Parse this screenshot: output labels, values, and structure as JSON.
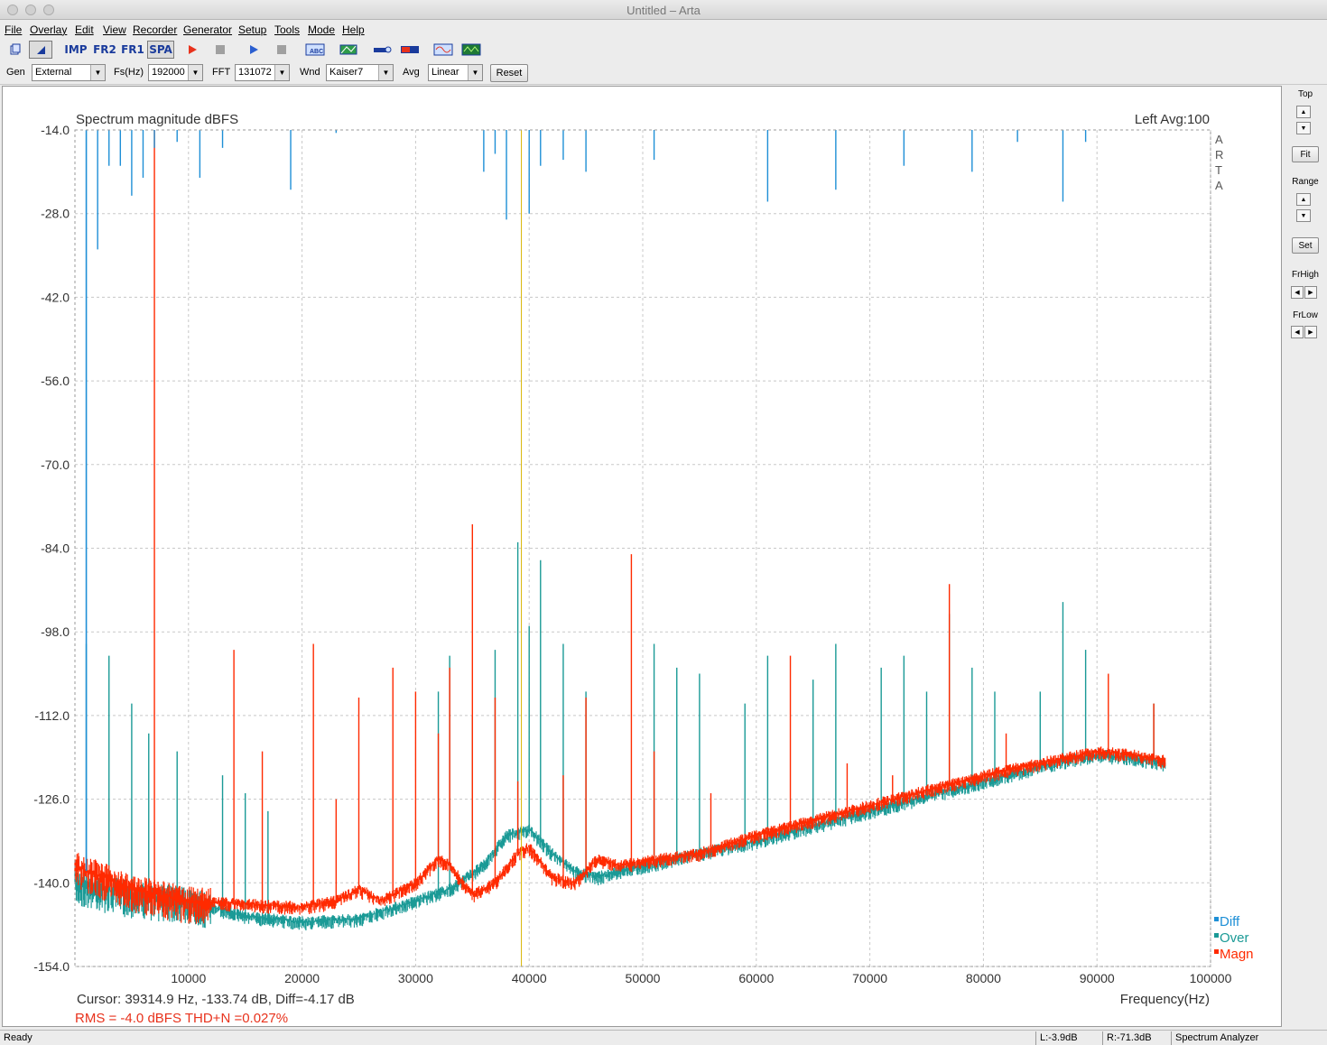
{
  "window": {
    "title": "Untitled – Arta"
  },
  "menu": [
    "File",
    "Overlay",
    "Edit",
    "View",
    "Recorder",
    "Generator",
    "Setup",
    "Tools",
    "Mode",
    "Help"
  ],
  "toolbar": {
    "imp": "IMP",
    "fr2": "FR2",
    "fr1": "FR1",
    "spa": "SPA"
  },
  "options": {
    "gen_label": "Gen",
    "gen_value": "External",
    "fs_label": "Fs(Hz)",
    "fs_value": "192000",
    "fft_label": "FFT",
    "fft_value": "131072",
    "wnd_label": "Wnd",
    "wnd_value": "Kaiser7",
    "avg_label": "Avg",
    "avg_value": "Linear",
    "reset_label": "Reset"
  },
  "side": {
    "top_label": "Top",
    "fit_label": "Fit",
    "range_label": "Range",
    "set_label": "Set",
    "frhigh_label": "FrHigh",
    "frlow_label": "FrLow"
  },
  "plot": {
    "title": "Spectrum magnitude dBFS",
    "channel": "Left  Avg:100",
    "brand": [
      "A",
      "R",
      "T",
      "A"
    ],
    "cursor_text": "Cursor: 39314.9 Hz, -133.74 dB,  Diff=-4.17 dB",
    "rms_text": "RMS =   -4.0 dBFS   THD+N =0.027%",
    "colors": {
      "diff": "#1e8fd6",
      "over": "#1a9a96",
      "magn": "#ff2a00",
      "cursor": "#d8b400",
      "grid": "#c8c8c8"
    }
  },
  "chart_data": {
    "type": "line",
    "xlabel": "Frequency(Hz)",
    "ylabel": "",
    "xlim": [
      0,
      100000
    ],
    "ylim": [
      -154,
      -14
    ],
    "xticks": [
      10000,
      20000,
      30000,
      40000,
      50000,
      60000,
      70000,
      80000,
      90000,
      100000
    ],
    "yticks": [
      -14.0,
      -28.0,
      -42.0,
      -56.0,
      -70.0,
      -84.0,
      -98.0,
      -112.0,
      -126.0,
      -140.0,
      -154.0
    ],
    "grid": true,
    "legend_position": "bottom-right",
    "cursor_x": 39314.9,
    "series": [
      {
        "name": "Diff",
        "spikes": [
          {
            "x": 1000,
            "y": -14
          },
          {
            "x": 2000,
            "y": -34
          },
          {
            "x": 3000,
            "y": -20
          },
          {
            "x": 4000,
            "y": -20
          },
          {
            "x": 5000,
            "y": -25
          },
          {
            "x": 6000,
            "y": -22
          },
          {
            "x": 7000,
            "y": -17
          },
          {
            "x": 9000,
            "y": -16
          },
          {
            "x": 11000,
            "y": -22
          },
          {
            "x": 13000,
            "y": -17
          },
          {
            "x": 19000,
            "y": -24
          },
          {
            "x": 23000,
            "y": -14.5
          },
          {
            "x": 36000,
            "y": -21
          },
          {
            "x": 37000,
            "y": -18
          },
          {
            "x": 38000,
            "y": -29
          },
          {
            "x": 39000,
            "y": -14
          },
          {
            "x": 40000,
            "y": -28
          },
          {
            "x": 41000,
            "y": -20
          },
          {
            "x": 43000,
            "y": -19
          },
          {
            "x": 45000,
            "y": -21
          },
          {
            "x": 51000,
            "y": -19
          },
          {
            "x": 61000,
            "y": -26
          },
          {
            "x": 67000,
            "y": -24
          },
          {
            "x": 73000,
            "y": -20
          },
          {
            "x": 79000,
            "y": -21
          },
          {
            "x": 83000,
            "y": -16
          },
          {
            "x": 87000,
            "y": -26
          },
          {
            "x": 89000,
            "y": -16
          }
        ]
      },
      {
        "name": "Over",
        "floor": [
          {
            "x": 0,
            "y": -140
          },
          {
            "x": 5000,
            "y": -142
          },
          {
            "x": 10000,
            "y": -143
          },
          {
            "x": 15000,
            "y": -145.5
          },
          {
            "x": 20000,
            "y": -146.5
          },
          {
            "x": 25000,
            "y": -146
          },
          {
            "x": 30000,
            "y": -143
          },
          {
            "x": 33000,
            "y": -141
          },
          {
            "x": 36000,
            "y": -137
          },
          {
            "x": 38000,
            "y": -132
          },
          {
            "x": 40000,
            "y": -131
          },
          {
            "x": 42000,
            "y": -135
          },
          {
            "x": 44000,
            "y": -138
          },
          {
            "x": 46000,
            "y": -139
          },
          {
            "x": 48000,
            "y": -138
          },
          {
            "x": 55000,
            "y": -135
          },
          {
            "x": 60000,
            "y": -133
          },
          {
            "x": 70000,
            "y": -128
          },
          {
            "x": 80000,
            "y": -123
          },
          {
            "x": 86000,
            "y": -120
          },
          {
            "x": 90000,
            "y": -118.5
          },
          {
            "x": 93000,
            "y": -119
          },
          {
            "x": 96000,
            "y": -120
          }
        ],
        "spikes": [
          {
            "x": 1000,
            "y": -100
          },
          {
            "x": 3000,
            "y": -102
          },
          {
            "x": 5000,
            "y": -110
          },
          {
            "x": 6500,
            "y": -115
          },
          {
            "x": 9000,
            "y": -118
          },
          {
            "x": 13000,
            "y": -122
          },
          {
            "x": 15000,
            "y": -125
          },
          {
            "x": 17000,
            "y": -128
          },
          {
            "x": 32000,
            "y": -108
          },
          {
            "x": 33000,
            "y": -102
          },
          {
            "x": 35000,
            "y": -112
          },
          {
            "x": 37000,
            "y": -101
          },
          {
            "x": 39000,
            "y": -83
          },
          {
            "x": 40000,
            "y": -97
          },
          {
            "x": 41000,
            "y": -86
          },
          {
            "x": 43000,
            "y": -100
          },
          {
            "x": 45000,
            "y": -108
          },
          {
            "x": 51000,
            "y": -100
          },
          {
            "x": 53000,
            "y": -104
          },
          {
            "x": 55000,
            "y": -105
          },
          {
            "x": 59000,
            "y": -110
          },
          {
            "x": 61000,
            "y": -102
          },
          {
            "x": 65000,
            "y": -106
          },
          {
            "x": 67000,
            "y": -100
          },
          {
            "x": 71000,
            "y": -104
          },
          {
            "x": 73000,
            "y": -102
          },
          {
            "x": 75000,
            "y": -108
          },
          {
            "x": 77000,
            "y": -95
          },
          {
            "x": 79000,
            "y": -104
          },
          {
            "x": 81000,
            "y": -108
          },
          {
            "x": 85000,
            "y": -108
          },
          {
            "x": 87000,
            "y": -93
          },
          {
            "x": 89000,
            "y": -101
          },
          {
            "x": 95000,
            "y": -110
          }
        ]
      },
      {
        "name": "Magn",
        "floor": [
          {
            "x": 0,
            "y": -137
          },
          {
            "x": 5000,
            "y": -141
          },
          {
            "x": 10000,
            "y": -143
          },
          {
            "x": 15000,
            "y": -143.5
          },
          {
            "x": 20000,
            "y": -144
          },
          {
            "x": 23000,
            "y": -143
          },
          {
            "x": 25000,
            "y": -141
          },
          {
            "x": 27000,
            "y": -143
          },
          {
            "x": 30000,
            "y": -140
          },
          {
            "x": 32000,
            "y": -136
          },
          {
            "x": 33000,
            "y": -137
          },
          {
            "x": 35000,
            "y": -142
          },
          {
            "x": 37000,
            "y": -140
          },
          {
            "x": 39000,
            "y": -135
          },
          {
            "x": 40000,
            "y": -134
          },
          {
            "x": 42000,
            "y": -139
          },
          {
            "x": 44000,
            "y": -140
          },
          {
            "x": 46000,
            "y": -136
          },
          {
            "x": 48000,
            "y": -137
          },
          {
            "x": 55000,
            "y": -135
          },
          {
            "x": 60000,
            "y": -132
          },
          {
            "x": 70000,
            "y": -127
          },
          {
            "x": 80000,
            "y": -122
          },
          {
            "x": 86000,
            "y": -119.5
          },
          {
            "x": 90000,
            "y": -118
          },
          {
            "x": 93000,
            "y": -118.5
          },
          {
            "x": 96000,
            "y": -119.5
          }
        ],
        "spikes": [
          {
            "x": 7000,
            "y": -14
          },
          {
            "x": 14000,
            "y": -101
          },
          {
            "x": 16500,
            "y": -118
          },
          {
            "x": 21000,
            "y": -100
          },
          {
            "x": 23000,
            "y": -126
          },
          {
            "x": 25000,
            "y": -109
          },
          {
            "x": 28000,
            "y": -104
          },
          {
            "x": 30000,
            "y": -108
          },
          {
            "x": 32000,
            "y": -115
          },
          {
            "x": 33000,
            "y": -104
          },
          {
            "x": 35000,
            "y": -80
          },
          {
            "x": 37000,
            "y": -109
          },
          {
            "x": 39000,
            "y": -123
          },
          {
            "x": 43000,
            "y": -122
          },
          {
            "x": 45000,
            "y": -109
          },
          {
            "x": 49000,
            "y": -85
          },
          {
            "x": 51000,
            "y": -118
          },
          {
            "x": 56000,
            "y": -125
          },
          {
            "x": 63000,
            "y": -102
          },
          {
            "x": 68000,
            "y": -120
          },
          {
            "x": 72000,
            "y": -122
          },
          {
            "x": 77000,
            "y": -90
          },
          {
            "x": 82000,
            "y": -115
          },
          {
            "x": 91000,
            "y": -105
          },
          {
            "x": 95000,
            "y": -110
          }
        ]
      }
    ]
  },
  "status": {
    "ready": "Ready",
    "left_level": "L:-3.9dB",
    "right_level": "R:-71.3dB",
    "mode": "Spectrum Analyzer"
  }
}
